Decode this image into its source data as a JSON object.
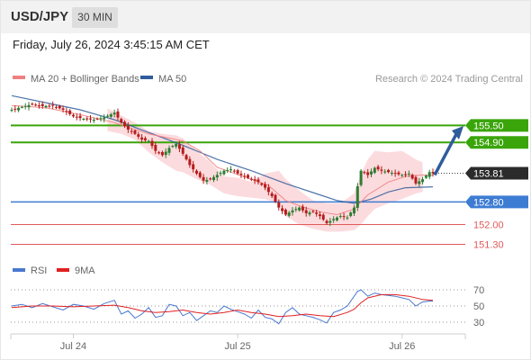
{
  "header": {
    "pair": "USD/JPY",
    "timeframe": "30 MIN",
    "datetime": "Friday, July 26, 2024 3:45:15 AM CET"
  },
  "legend": {
    "ma20_label": "MA 20 + Bollinger Bands",
    "ma50_label": "MA 50",
    "credit": "Research © 2024 Trading Central"
  },
  "rsi_legend": {
    "rsi_label": "RSI",
    "ma_label": "9MA"
  },
  "colors": {
    "green": "#3aa50a",
    "blue": "#3d7cd3",
    "red": "#e05a5a",
    "bull": "#2e7d32",
    "bear": "#b71c1c",
    "ma50": "#2f5d9b",
    "ma20": "#f08080",
    "band": "#fbd5d8",
    "arrow": "#2f5d9b",
    "price": "#2b2b2b",
    "rsi": "#4a78d0",
    "rsi_ma": "#e02020"
  },
  "chart_data": {
    "type": "candlestick",
    "y_range": [
      151.0,
      156.4
    ],
    "x_ticks": [
      {
        "label": "Jul 24",
        "t": 18
      },
      {
        "label": "Jul 25",
        "t": 66
      },
      {
        "label": "Jul 26",
        "t": 114
      }
    ],
    "levels": [
      {
        "label": "155.50",
        "value": 155.5,
        "kind": "green-tag"
      },
      {
        "label": "154.90",
        "value": 154.9,
        "kind": "green-tag"
      },
      {
        "label": "153.81",
        "value": 153.81,
        "kind": "price"
      },
      {
        "label": "152.80",
        "value": 152.8,
        "kind": "blue-tag"
      },
      {
        "label": "152.00",
        "value": 152.0,
        "kind": "red-text"
      },
      {
        "label": "151.30",
        "value": 151.3,
        "kind": "red-text"
      }
    ],
    "current_price": 153.81,
    "target_arrow": {
      "from": 153.75,
      "to": 155.35
    },
    "price_path": [
      [
        0,
        156.05
      ],
      [
        3,
        156.15
      ],
      [
        6,
        156.25
      ],
      [
        9,
        156.18
      ],
      [
        12,
        156.2
      ],
      [
        15,
        156.05
      ],
      [
        18,
        155.82
      ],
      [
        21,
        155.73
      ],
      [
        24,
        155.7
      ],
      [
        27,
        155.78
      ],
      [
        30,
        155.95
      ],
      [
        32,
        155.6
      ],
      [
        34,
        155.35
      ],
      [
        36,
        155.2
      ],
      [
        38,
        155.0
      ],
      [
        40,
        154.95
      ],
      [
        42,
        154.6
      ],
      [
        44,
        154.45
      ],
      [
        46,
        154.7
      ],
      [
        48,
        154.85
      ],
      [
        50,
        154.5
      ],
      [
        52,
        154.1
      ],
      [
        54,
        153.8
      ],
      [
        56,
        153.55
      ],
      [
        58,
        153.6
      ],
      [
        60,
        153.75
      ],
      [
        62,
        153.9
      ],
      [
        64,
        153.95
      ],
      [
        66,
        153.8
      ],
      [
        68,
        153.7
      ],
      [
        70,
        153.6
      ],
      [
        72,
        153.5
      ],
      [
        74,
        153.3
      ],
      [
        76,
        153.0
      ],
      [
        78,
        152.6
      ],
      [
        80,
        152.35
      ],
      [
        82,
        152.5
      ],
      [
        84,
        152.6
      ],
      [
        86,
        152.4
      ],
      [
        88,
        152.45
      ],
      [
        90,
        152.3
      ],
      [
        92,
        152.05
      ],
      [
        94,
        152.2
      ],
      [
        96,
        152.3
      ],
      [
        98,
        152.25
      ],
      [
        100,
        152.6
      ],
      [
        101,
        153.35
      ],
      [
        102,
        153.9
      ],
      [
        104,
        153.75
      ],
      [
        106,
        154.0
      ],
      [
        108,
        153.9
      ],
      [
        110,
        153.85
      ],
      [
        112,
        153.8
      ],
      [
        114,
        153.75
      ],
      [
        116,
        153.8
      ],
      [
        118,
        153.45
      ],
      [
        120,
        153.6
      ],
      [
        122,
        153.85
      ],
      [
        123,
        153.81
      ]
    ],
    "ma20": [
      [
        0,
        156.2
      ],
      [
        10,
        156.12
      ],
      [
        20,
        155.88
      ],
      [
        30,
        155.6
      ],
      [
        40,
        155.2
      ],
      [
        50,
        154.95
      ],
      [
        55,
        154.6
      ],
      [
        60,
        154.02
      ],
      [
        64,
        153.85
      ],
      [
        70,
        153.6
      ],
      [
        75,
        153.38
      ],
      [
        80,
        152.85
      ],
      [
        85,
        152.62
      ],
      [
        90,
        152.45
      ],
      [
        95,
        152.35
      ],
      [
        100,
        152.55
      ],
      [
        104,
        153.05
      ],
      [
        110,
        153.5
      ],
      [
        115,
        153.7
      ],
      [
        120,
        153.75
      ],
      [
        123,
        153.74
      ]
    ],
    "ma50": [
      [
        0,
        156.55
      ],
      [
        10,
        156.3
      ],
      [
        20,
        156.05
      ],
      [
        30,
        155.7
      ],
      [
        40,
        155.25
      ],
      [
        50,
        154.8
      ],
      [
        60,
        154.3
      ],
      [
        70,
        153.9
      ],
      [
        80,
        153.45
      ],
      [
        90,
        153.05
      ],
      [
        95,
        152.85
      ],
      [
        100,
        152.75
      ],
      [
        105,
        152.9
      ],
      [
        110,
        153.15
      ],
      [
        115,
        153.3
      ],
      [
        120,
        153.32
      ],
      [
        123,
        153.33
      ]
    ],
    "bb_upper": [
      [
        28,
        156.1
      ],
      [
        32,
        155.85
      ],
      [
        36,
        155.6
      ],
      [
        40,
        155.3
      ],
      [
        44,
        155.2
      ],
      [
        48,
        155.15
      ],
      [
        50,
        155.05
      ],
      [
        54,
        154.6
      ],
      [
        58,
        154.2
      ],
      [
        62,
        153.7
      ],
      [
        66,
        153.65
      ],
      [
        70,
        153.5
      ],
      [
        74,
        153.8
      ],
      [
        78,
        153.9
      ],
      [
        80,
        153.6
      ],
      [
        84,
        153.2
      ],
      [
        88,
        152.85
      ],
      [
        92,
        152.75
      ],
      [
        96,
        152.75
      ],
      [
        100,
        153.1
      ],
      [
        102,
        153.8
      ],
      [
        104,
        154.3
      ],
      [
        106,
        154.6
      ],
      [
        110,
        154.55
      ],
      [
        114,
        154.6
      ],
      [
        118,
        154.3
      ],
      [
        120,
        154.2
      ]
    ],
    "bb_lower": [
      [
        28,
        155.3
      ],
      [
        32,
        155.2
      ],
      [
        36,
        155.0
      ],
      [
        40,
        154.55
      ],
      [
        44,
        154.2
      ],
      [
        48,
        153.9
      ],
      [
        50,
        153.85
      ],
      [
        54,
        153.6
      ],
      [
        58,
        153.4
      ],
      [
        62,
        153.1
      ],
      [
        66,
        153.0
      ],
      [
        70,
        152.95
      ],
      [
        74,
        152.9
      ],
      [
        78,
        152.75
      ],
      [
        80,
        152.3
      ],
      [
        84,
        152.0
      ],
      [
        88,
        151.85
      ],
      [
        92,
        151.75
      ],
      [
        96,
        151.75
      ],
      [
        100,
        151.8
      ],
      [
        102,
        152.0
      ],
      [
        104,
        152.3
      ],
      [
        106,
        152.55
      ],
      [
        110,
        152.75
      ],
      [
        114,
        152.9
      ],
      [
        118,
        153.1
      ],
      [
        120,
        153.15
      ]
    ],
    "rsi": {
      "y_range": [
        20,
        80
      ],
      "ticks": [
        "70",
        "50",
        "30"
      ],
      "tick_values": [
        70,
        50,
        30
      ],
      "rsi_path": [
        [
          0,
          50
        ],
        [
          3,
          52
        ],
        [
          6,
          48
        ],
        [
          9,
          53
        ],
        [
          12,
          49
        ],
        [
          15,
          45
        ],
        [
          18,
          52
        ],
        [
          21,
          50
        ],
        [
          24,
          46
        ],
        [
          27,
          53
        ],
        [
          30,
          57
        ],
        [
          32,
          40
        ],
        [
          34,
          44
        ],
        [
          36,
          35
        ],
        [
          38,
          40
        ],
        [
          40,
          48
        ],
        [
          42,
          36
        ],
        [
          44,
          38
        ],
        [
          46,
          52
        ],
        [
          48,
          50
        ],
        [
          50,
          38
        ],
        [
          52,
          42
        ],
        [
          54,
          32
        ],
        [
          56,
          38
        ],
        [
          58,
          44
        ],
        [
          60,
          42
        ],
        [
          62,
          50
        ],
        [
          64,
          46
        ],
        [
          66,
          43
        ],
        [
          68,
          40
        ],
        [
          70,
          35
        ],
        [
          72,
          45
        ],
        [
          74,
          36
        ],
        [
          76,
          34
        ],
        [
          78,
          28
        ],
        [
          80,
          42
        ],
        [
          82,
          48
        ],
        [
          84,
          40
        ],
        [
          86,
          38
        ],
        [
          88,
          36
        ],
        [
          90,
          33
        ],
        [
          92,
          29
        ],
        [
          94,
          42
        ],
        [
          96,
          45
        ],
        [
          98,
          50
        ],
        [
          100,
          62
        ],
        [
          101,
          68
        ],
        [
          102,
          70
        ],
        [
          104,
          62
        ],
        [
          106,
          66
        ],
        [
          108,
          64
        ],
        [
          110,
          63
        ],
        [
          112,
          62
        ],
        [
          114,
          60
        ],
        [
          116,
          58
        ],
        [
          118,
          50
        ],
        [
          120,
          55
        ],
        [
          122,
          56
        ],
        [
          123,
          56
        ]
      ],
      "ma_path": [
        [
          0,
          48
        ],
        [
          6,
          50
        ],
        [
          12,
          50
        ],
        [
          18,
          49
        ],
        [
          24,
          50
        ],
        [
          30,
          51
        ],
        [
          34,
          48
        ],
        [
          38,
          44
        ],
        [
          42,
          42
        ],
        [
          46,
          43
        ],
        [
          50,
          45
        ],
        [
          54,
          42
        ],
        [
          58,
          40
        ],
        [
          62,
          42
        ],
        [
          66,
          45
        ],
        [
          70,
          42
        ],
        [
          74,
          40
        ],
        [
          78,
          37
        ],
        [
          82,
          38
        ],
        [
          86,
          40
        ],
        [
          90,
          38
        ],
        [
          94,
          37
        ],
        [
          98,
          42
        ],
        [
          100,
          46
        ],
        [
          102,
          54
        ],
        [
          104,
          60
        ],
        [
          108,
          64
        ],
        [
          112,
          64
        ],
        [
          116,
          62
        ],
        [
          120,
          58
        ],
        [
          123,
          57
        ]
      ]
    }
  }
}
